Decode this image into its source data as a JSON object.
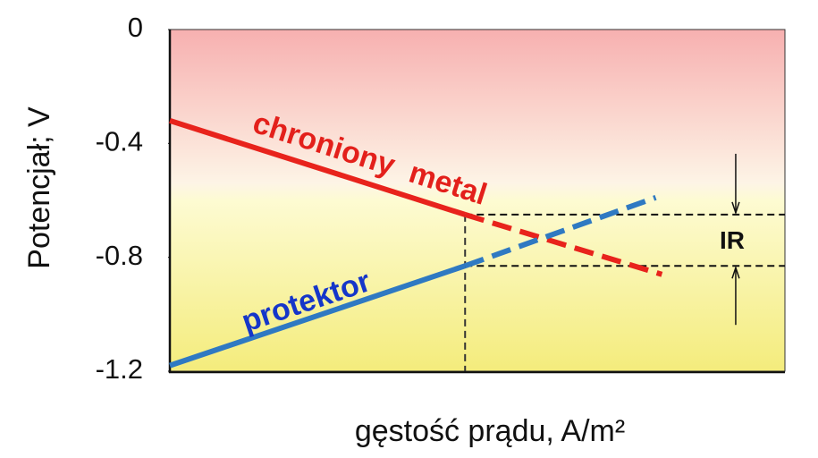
{
  "chart_data": {
    "type": "line",
    "xlabel": "gęstość prądu, A/m²",
    "ylabel": "Potencjał;  V",
    "xlim": [
      0,
      1
    ],
    "ylim": [
      -1.2,
      0
    ],
    "yticks": [
      0,
      -0.4,
      -0.8,
      -1.2
    ],
    "series": [
      {
        "name": "chroniony  metal",
        "color": "#e8231c",
        "label_color": "#e3201b",
        "x": [
          0,
          0.48,
          0.8
        ],
        "values": [
          -0.32,
          -0.65,
          -0.86
        ],
        "segment_styles": [
          "solid",
          "dashed"
        ]
      },
      {
        "name": "protektor",
        "color": "#2f79c2",
        "label_color": "#1536c9",
        "x": [
          0,
          0.48,
          0.79
        ],
        "values": [
          -1.18,
          -0.83,
          -0.59
        ],
        "segment_styles": [
          "solid",
          "dashed"
        ]
      }
    ],
    "guides": {
      "vline": 0.48,
      "hlines": [
        -0.65,
        -0.83
      ]
    },
    "annotation": {
      "text": "IR",
      "x": 0.92
    }
  }
}
